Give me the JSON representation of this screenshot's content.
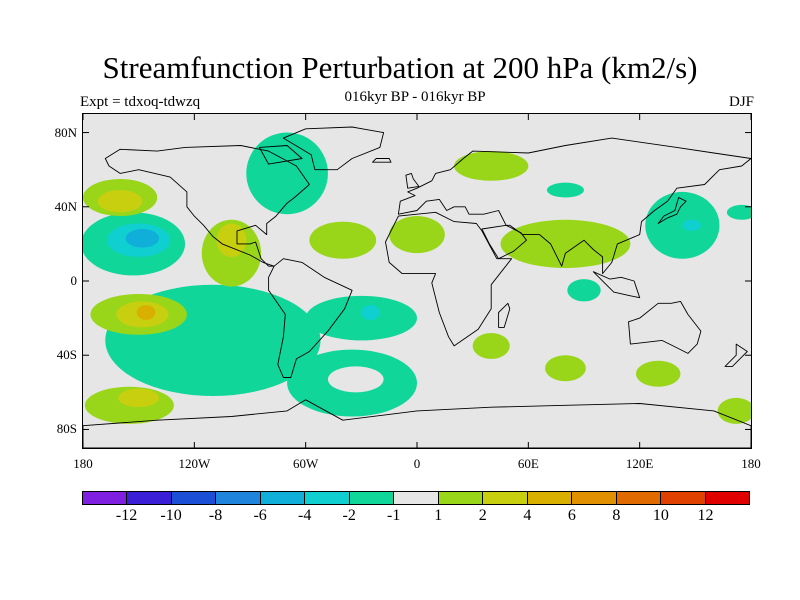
{
  "title": "Streamfunction Perturbation at 200 hPa (km2/s)",
  "subtitle": "016kyr BP - 016kyr BP",
  "experiment": "Expt = tdxoq-tdwzq",
  "season": "DJF",
  "map": {
    "projection": "cylindrical equidistant",
    "lon_range": [
      -180,
      180
    ],
    "lat_range": [
      -90,
      90
    ],
    "background_color": "#e6e6e6",
    "lat_ticks": [
      {
        "value": 80,
        "label": "80N"
      },
      {
        "value": 40,
        "label": "40N"
      },
      {
        "value": 0,
        "label": "0"
      },
      {
        "value": -40,
        "label": "40S"
      },
      {
        "value": -80,
        "label": "80S"
      }
    ],
    "lon_ticks": [
      {
        "value": -180,
        "label": "180"
      },
      {
        "value": -120,
        "label": "120W"
      },
      {
        "value": -60,
        "label": "60W"
      },
      {
        "value": 0,
        "label": "0"
      },
      {
        "value": 60,
        "label": "60E"
      },
      {
        "value": 120,
        "label": "120E"
      },
      {
        "value": 180,
        "label": "180"
      }
    ]
  },
  "colorbar": {
    "colors": [
      "#7f1fe0",
      "#3a1fd6",
      "#1a4fd6",
      "#1f85dc",
      "#0fafd9",
      "#10cfd0",
      "#10d69a",
      "#e6e6e6",
      "#99d61a",
      "#c8cf0f",
      "#dab000",
      "#e09000",
      "#e06a00",
      "#e04000",
      "#e00000"
    ],
    "labels": [
      "-12",
      "-10",
      "-8",
      "-6",
      "-4",
      "-2",
      "-1",
      "1",
      "2",
      "4",
      "6",
      "8",
      "10",
      "12"
    ]
  },
  "regions": [
    {
      "level": "-1",
      "color": "#10d69a",
      "lon": -110,
      "lat": -32,
      "rx": 58,
      "ry": 30
    },
    {
      "level": "-1",
      "color": "#10d69a",
      "lon": -35,
      "lat": -55,
      "rx": 35,
      "ry": 18
    },
    {
      "level": "-1",
      "color": "#10d69a",
      "lon": -30,
      "lat": -20,
      "rx": 30,
      "ry": 12
    },
    {
      "level": "-1",
      "color": "#10d69a",
      "lon": -153,
      "lat": 20,
      "rx": 28,
      "ry": 17
    },
    {
      "level": "-1",
      "color": "#10d69a",
      "lon": -70,
      "lat": 58,
      "rx": 22,
      "ry": 22
    },
    {
      "level": "-1",
      "color": "#10d69a",
      "lon": 80,
      "lat": 49,
      "rx": 10,
      "ry": 4
    },
    {
      "level": "-1",
      "color": "#10d69a",
      "lon": 90,
      "lat": -5,
      "rx": 9,
      "ry": 6
    },
    {
      "level": "-1",
      "color": "#10d69a",
      "lon": 143,
      "lat": 30,
      "rx": 20,
      "ry": 18
    },
    {
      "level": "-1",
      "color": "#10d69a",
      "lon": 175,
      "lat": 37,
      "rx": 8,
      "ry": 4
    },
    {
      "level": "-2",
      "color": "#10cfd0",
      "lon": -150,
      "lat": 22,
      "rx": 17,
      "ry": 9
    },
    {
      "level": "-2",
      "color": "#10cfd0",
      "lon": -25,
      "lat": -17,
      "rx": 5,
      "ry": 4
    },
    {
      "level": "-2",
      "color": "#10cfd0",
      "lon": 148,
      "lat": 30,
      "rx": 5,
      "ry": 3
    },
    {
      "level": "-4",
      "color": "#0fafd9",
      "lon": -148,
      "lat": 23,
      "rx": 9,
      "ry": 5
    },
    {
      "level": "1",
      "color": "#99d61a",
      "lon": -160,
      "lat": 45,
      "rx": 20,
      "ry": 10
    },
    {
      "level": "1",
      "color": "#99d61a",
      "lon": -150,
      "lat": -18,
      "rx": 26,
      "ry": 11
    },
    {
      "level": "1",
      "color": "#99d61a",
      "lon": -155,
      "lat": -67,
      "rx": 24,
      "ry": 10
    },
    {
      "level": "1",
      "color": "#99d61a",
      "lon": -100,
      "lat": 15,
      "rx": 16,
      "ry": 18
    },
    {
      "level": "1",
      "color": "#99d61a",
      "lon": -40,
      "lat": 22,
      "rx": 18,
      "ry": 10
    },
    {
      "level": "1",
      "color": "#99d61a",
      "lon": 40,
      "lat": 62,
      "rx": 20,
      "ry": 8
    },
    {
      "level": "1",
      "color": "#99d61a",
      "lon": 80,
      "lat": 20,
      "rx": 35,
      "ry": 13
    },
    {
      "level": "1",
      "color": "#99d61a",
      "lon": 0,
      "lat": 25,
      "rx": 15,
      "ry": 10
    },
    {
      "level": "1",
      "color": "#99d61a",
      "lon": 40,
      "lat": -35,
      "rx": 10,
      "ry": 7
    },
    {
      "level": "1",
      "color": "#99d61a",
      "lon": 80,
      "lat": -47,
      "rx": 11,
      "ry": 7
    },
    {
      "level": "1",
      "color": "#99d61a",
      "lon": 130,
      "lat": -50,
      "rx": 12,
      "ry": 7
    },
    {
      "level": "1",
      "color": "#99d61a",
      "lon": 172,
      "lat": -70,
      "rx": 10,
      "ry": 7
    },
    {
      "level": "2",
      "color": "#c8cf0f",
      "lon": -160,
      "lat": 43,
      "rx": 12,
      "ry": 6
    },
    {
      "level": "2",
      "color": "#c8cf0f",
      "lon": -148,
      "lat": -18,
      "rx": 14,
      "ry": 7
    },
    {
      "level": "2",
      "color": "#c8cf0f",
      "lon": -150,
      "lat": -63,
      "rx": 11,
      "ry": 5
    },
    {
      "level": "2",
      "color": "#c8cf0f",
      "lon": -100,
      "lat": 22,
      "rx": 8,
      "ry": 9
    },
    {
      "level": "4",
      "color": "#dab000",
      "lon": -146,
      "lat": -17,
      "rx": 5,
      "ry": 4
    }
  ],
  "holes": [
    {
      "lon": -33,
      "lat": -53,
      "rx": 15,
      "ry": 7
    }
  ],
  "continents": [
    {
      "name": "north-america",
      "points": [
        [
          -168,
          66
        ],
        [
          -160,
          71
        ],
        [
          -140,
          70
        ],
        [
          -125,
          72
        ],
        [
          -95,
          73
        ],
        [
          -80,
          70
        ],
        [
          -65,
          62
        ],
        [
          -58,
          52
        ],
        [
          -66,
          45
        ],
        [
          -70,
          42
        ],
        [
          -76,
          35
        ],
        [
          -81,
          31
        ],
        [
          -81,
          25
        ],
        [
          -87,
          30
        ],
        [
          -97,
          27
        ],
        [
          -97,
          20
        ],
        [
          -90,
          20
        ],
        [
          -87,
          21
        ],
        [
          -84,
          12
        ],
        [
          -80,
          8
        ],
        [
          -77,
          8
        ],
        [
          -83,
          10
        ],
        [
          -90,
          14
        ],
        [
          -105,
          20
        ],
        [
          -110,
          24
        ],
        [
          -115,
          30
        ],
        [
          -120,
          35
        ],
        [
          -124,
          40
        ],
        [
          -124,
          48
        ],
        [
          -133,
          56
        ],
        [
          -150,
          60
        ],
        [
          -160,
          58
        ],
        [
          -166,
          62
        ]
      ]
    },
    {
      "name": "south-america",
      "points": [
        [
          -77,
          8
        ],
        [
          -72,
          12
        ],
        [
          -62,
          10
        ],
        [
          -50,
          2
        ],
        [
          -35,
          -5
        ],
        [
          -39,
          -15
        ],
        [
          -48,
          -27
        ],
        [
          -58,
          -38
        ],
        [
          -65,
          -42
        ],
        [
          -68,
          -52
        ],
        [
          -72,
          -52
        ],
        [
          -75,
          -45
        ],
        [
          -72,
          -30
        ],
        [
          -71,
          -18
        ],
        [
          -80,
          -5
        ],
        [
          -80,
          2
        ]
      ]
    },
    {
      "name": "greenland",
      "points": [
        [
          -55,
          60
        ],
        [
          -43,
          60
        ],
        [
          -35,
          66
        ],
        [
          -20,
          72
        ],
        [
          -18,
          80
        ],
        [
          -35,
          83
        ],
        [
          -60,
          82
        ],
        [
          -72,
          77
        ],
        [
          -57,
          68
        ]
      ]
    },
    {
      "name": "eurasia",
      "points": [
        [
          -10,
          36
        ],
        [
          -9,
          43
        ],
        [
          -1,
          46
        ],
        [
          -5,
          48
        ],
        [
          0,
          50
        ],
        [
          8,
          54
        ],
        [
          10,
          58
        ],
        [
          18,
          60
        ],
        [
          25,
          66
        ],
        [
          30,
          70
        ],
        [
          60,
          69
        ],
        [
          80,
          73
        ],
        [
          105,
          77
        ],
        [
          140,
          72
        ],
        [
          160,
          69
        ],
        [
          180,
          66
        ],
        [
          175,
          62
        ],
        [
          163,
          60
        ],
        [
          155,
          52
        ],
        [
          140,
          50
        ],
        [
          135,
          43
        ],
        [
          128,
          38
        ],
        [
          121,
          32
        ],
        [
          120,
          25
        ],
        [
          108,
          20
        ],
        [
          105,
          10
        ],
        [
          100,
          4
        ],
        [
          100,
          13
        ],
        [
          95,
          17
        ],
        [
          90,
          22
        ],
        [
          80,
          15
        ],
        [
          78,
          8
        ],
        [
          72,
          20
        ],
        [
          66,
          25
        ],
        [
          57,
          25
        ],
        [
          50,
          30
        ],
        [
          48,
          30
        ],
        [
          44,
          38
        ],
        [
          36,
          36
        ],
        [
          28,
          36
        ],
        [
          26,
          40
        ],
        [
          20,
          40
        ],
        [
          16,
          38
        ],
        [
          12,
          44
        ],
        [
          5,
          43
        ],
        [
          0,
          38
        ]
      ]
    },
    {
      "name": "africa",
      "points": [
        [
          -17,
          21
        ],
        [
          -10,
          35
        ],
        [
          10,
          37
        ],
        [
          20,
          32
        ],
        [
          32,
          31
        ],
        [
          35,
          27
        ],
        [
          43,
          12
        ],
        [
          51,
          12
        ],
        [
          40,
          -2
        ],
        [
          40,
          -15
        ],
        [
          33,
          -26
        ],
        [
          20,
          -35
        ],
        [
          17,
          -30
        ],
        [
          12,
          -17
        ],
        [
          8,
          -1
        ],
        [
          10,
          4
        ],
        [
          -8,
          4
        ],
        [
          -15,
          10
        ]
      ]
    },
    {
      "name": "arabia",
      "points": [
        [
          35,
          28
        ],
        [
          48,
          30
        ],
        [
          56,
          26
        ],
        [
          59,
          22
        ],
        [
          52,
          16
        ],
        [
          44,
          12
        ],
        [
          39,
          20
        ]
      ]
    },
    {
      "name": "australia",
      "points": [
        [
          114,
          -22
        ],
        [
          120,
          -20
        ],
        [
          130,
          -12
        ],
        [
          137,
          -12
        ],
        [
          142,
          -11
        ],
        [
          146,
          -18
        ],
        [
          153,
          -27
        ],
        [
          151,
          -34
        ],
        [
          146,
          -39
        ],
        [
          138,
          -35
        ],
        [
          132,
          -32
        ],
        [
          115,
          -34
        ]
      ]
    },
    {
      "name": "antarctica-coast",
      "points": [
        [
          -180,
          -78
        ],
        [
          -140,
          -75
        ],
        [
          -100,
          -73
        ],
        [
          -70,
          -70
        ],
        [
          -60,
          -64
        ],
        [
          -40,
          -75
        ],
        [
          0,
          -70
        ],
        [
          40,
          -68
        ],
        [
          80,
          -67
        ],
        [
          120,
          -66
        ],
        [
          160,
          -70
        ],
        [
          180,
          -78
        ],
        [
          180,
          -90
        ],
        [
          -180,
          -90
        ]
      ]
    },
    {
      "name": "madagascar",
      "points": [
        [
          44,
          -25
        ],
        [
          47,
          -25
        ],
        [
          50,
          -15
        ],
        [
          49,
          -12
        ],
        [
          44,
          -17
        ]
      ]
    },
    {
      "name": "uk",
      "points": [
        [
          -5,
          50
        ],
        [
          1,
          51
        ],
        [
          -2,
          55
        ],
        [
          -3,
          58
        ],
        [
          -6,
          57
        ]
      ]
    },
    {
      "name": "japan",
      "points": [
        [
          130,
          31
        ],
        [
          135,
          34
        ],
        [
          140,
          36
        ],
        [
          142,
          40
        ],
        [
          145,
          43
        ],
        [
          141,
          45
        ],
        [
          139,
          38
        ],
        [
          133,
          35
        ]
      ]
    },
    {
      "name": "new-zealand",
      "points": [
        [
          172,
          -34
        ],
        [
          178,
          -38
        ],
        [
          175,
          -41
        ],
        [
          170,
          -46
        ],
        [
          166,
          -46
        ],
        [
          172,
          -40
        ]
      ]
    },
    {
      "name": "indonesia",
      "points": [
        [
          95,
          5
        ],
        [
          106,
          -6
        ],
        [
          115,
          -8
        ],
        [
          120,
          -9
        ],
        [
          117,
          0
        ],
        [
          110,
          2
        ],
        [
          104,
          1
        ]
      ]
    },
    {
      "name": "baffin",
      "points": [
        [
          -80,
          63
        ],
        [
          -62,
          66
        ],
        [
          -70,
          73
        ],
        [
          -85,
          72
        ]
      ]
    },
    {
      "name": "iceland",
      "points": [
        [
          -24,
          64
        ],
        [
          -14,
          64
        ],
        [
          -15,
          66
        ],
        [
          -22,
          66
        ]
      ]
    }
  ]
}
